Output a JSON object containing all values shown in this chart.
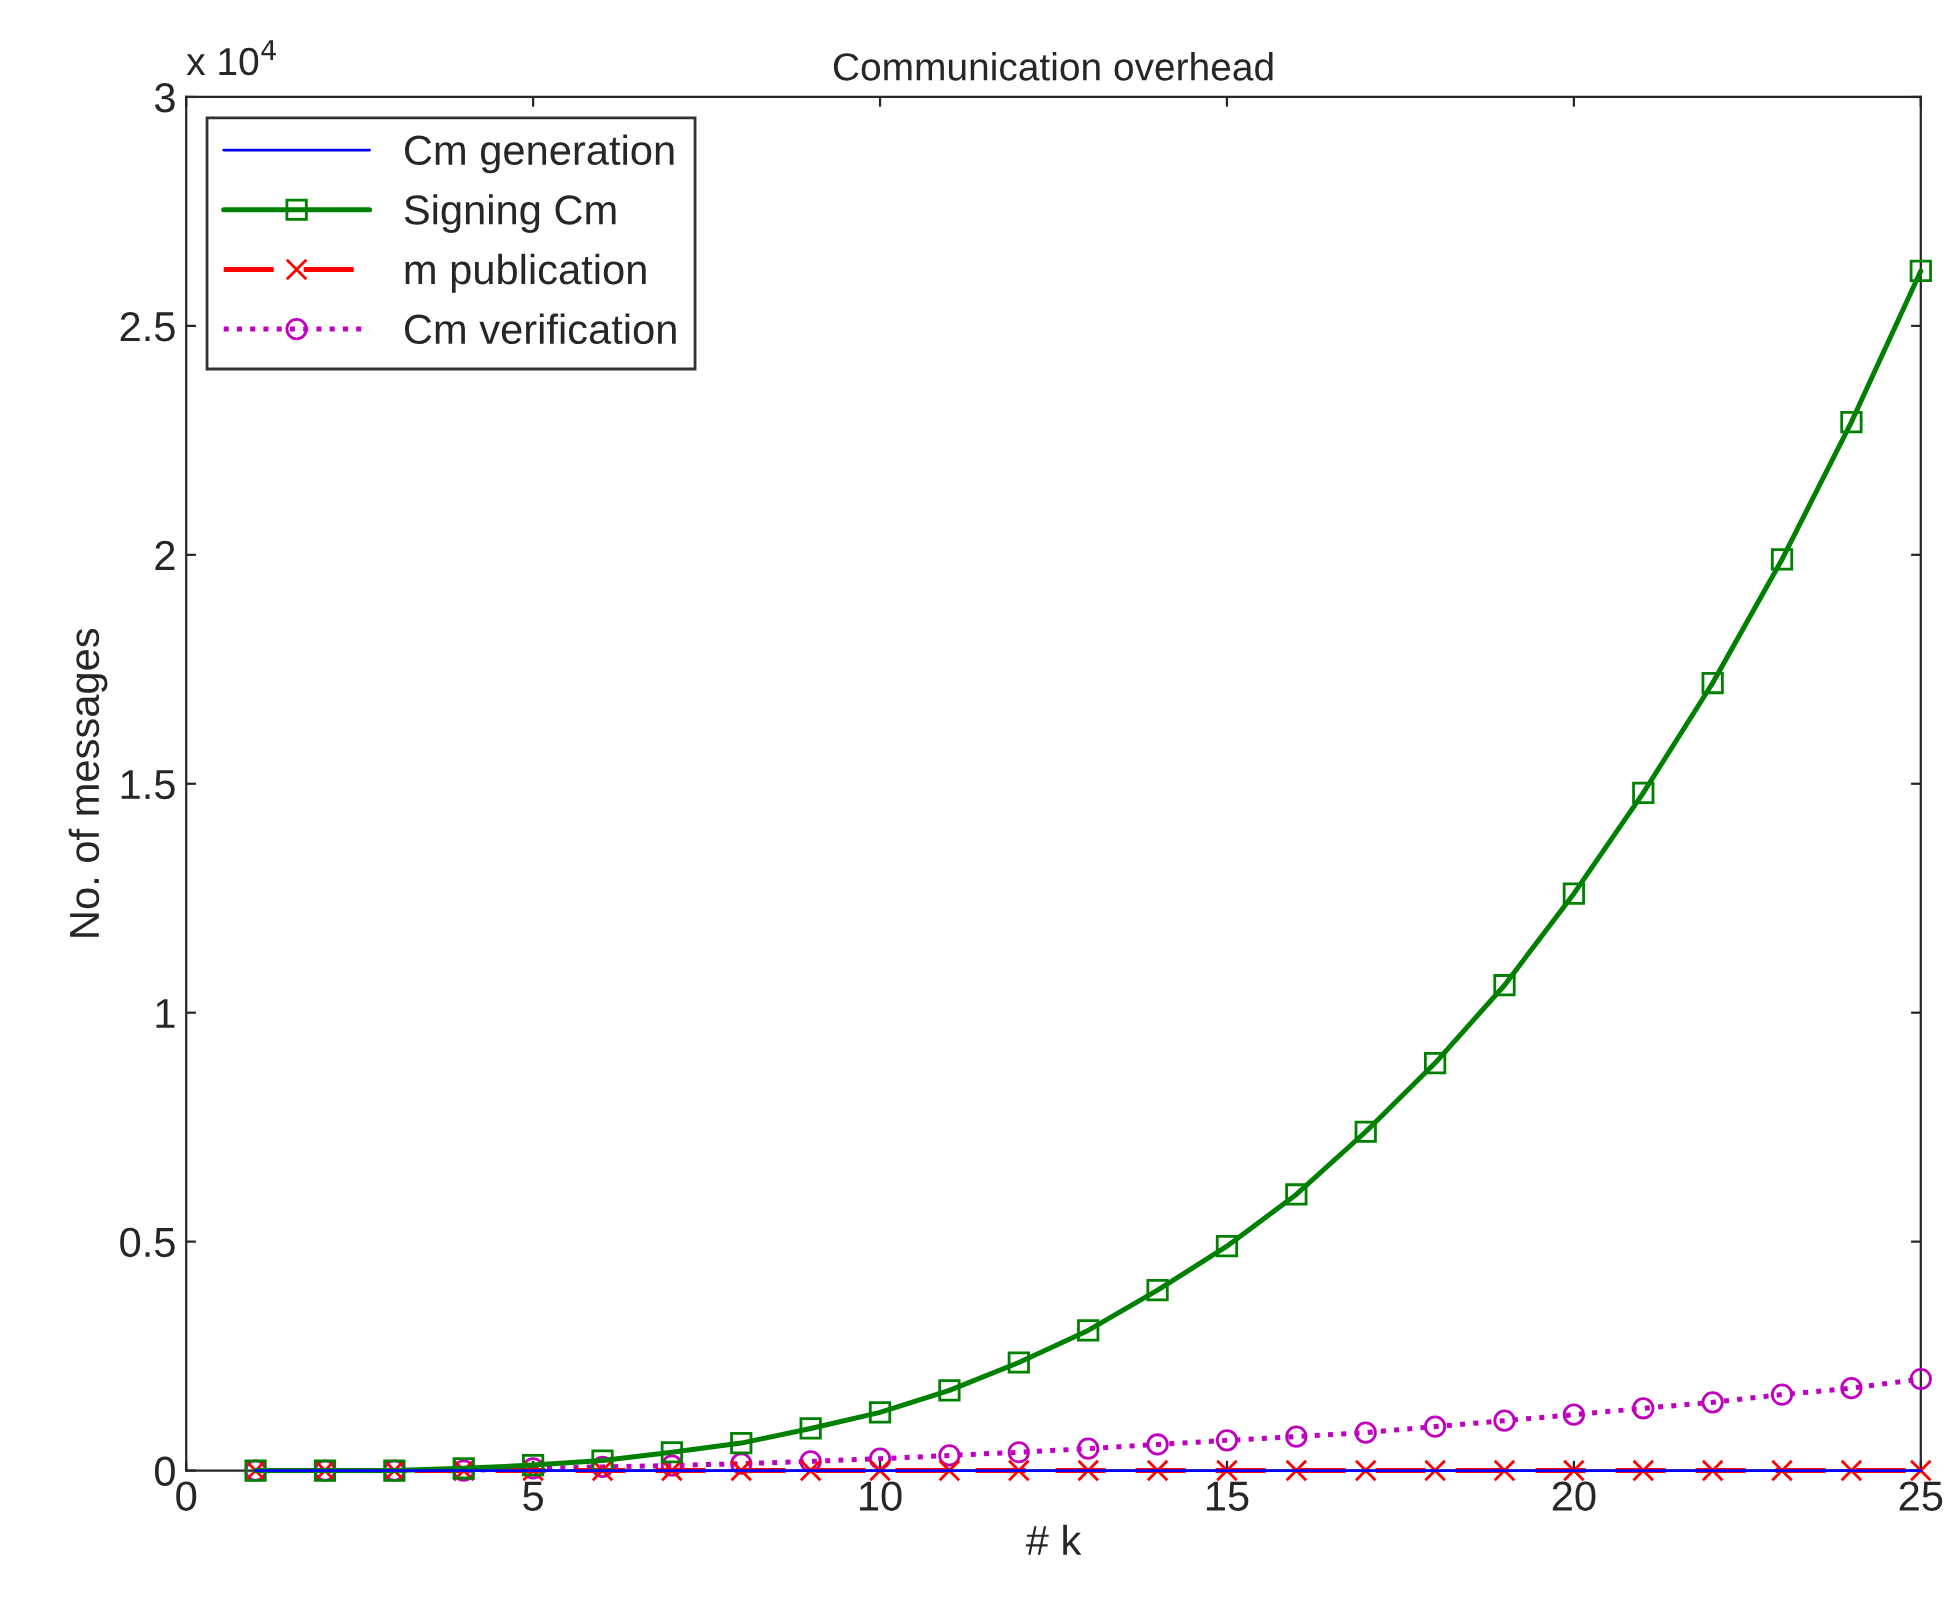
{
  "chart_data": {
    "type": "line",
    "title": "Communication overhead",
    "xlabel": "# k",
    "ylabel": "No. of messages",
    "annotations": [
      "x 10$^{4}$"
    ],
    "x": [
      1,
      2,
      3,
      4,
      5,
      6,
      7,
      8,
      9,
      10,
      11,
      12,
      13,
      14,
      15,
      16,
      17,
      18,
      19,
      20,
      21,
      22,
      23,
      24,
      25
    ],
    "series": [
      {
        "name": "Cm generation",
        "color": "#0000ff",
        "marker": "none",
        "line_style": "solid",
        "values": [
          0,
          0,
          0,
          0,
          0,
          0,
          0,
          0,
          0,
          0,
          0,
          0,
          0,
          0,
          0,
          0,
          0,
          0,
          0,
          0,
          0,
          0,
          0,
          0,
          0
        ]
      },
      {
        "name": "Signing Cm",
        "color": "#008000",
        "marker": "square",
        "line_style": "solid",
        "values": [
          0,
          0,
          0,
          0.005,
          0.012,
          0.022,
          0.04,
          0.06,
          0.092,
          0.127,
          0.175,
          0.236,
          0.306,
          0.394,
          0.49,
          0.603,
          0.74,
          0.89,
          1.06,
          1.26,
          1.48,
          1.72,
          1.99,
          2.29,
          2.62
        ]
      },
      {
        "name": "m publication",
        "color": "#ff0000",
        "marker": "cross",
        "line_style": "dashed",
        "values": [
          0,
          0,
          0,
          0,
          0,
          0,
          0,
          0,
          0,
          0,
          0,
          0,
          0,
          0,
          0,
          0,
          0,
          0,
          0,
          0,
          0,
          0,
          0,
          0,
          0
        ]
      },
      {
        "name": "Cm verification",
        "color": "#bf00bf",
        "marker": "circle",
        "line_style": "dotted",
        "values": [
          0,
          0,
          0,
          0,
          0.005,
          0.008,
          0.011,
          0.015,
          0.02,
          0.026,
          0.033,
          0.04,
          0.048,
          0.057,
          0.066,
          0.074,
          0.083,
          0.096,
          0.109,
          0.122,
          0.136,
          0.149,
          0.166,
          0.18,
          0.2
        ]
      }
    ],
    "xlim": [
      0,
      25
    ],
    "xticks": [
      0,
      5,
      10,
      15,
      20,
      25
    ],
    "ylim": [
      0,
      3
    ],
    "yticks": [
      0,
      0.5,
      1,
      1.5,
      2,
      2.5,
      3
    ],
    "grid": false,
    "legend": "top left"
  }
}
